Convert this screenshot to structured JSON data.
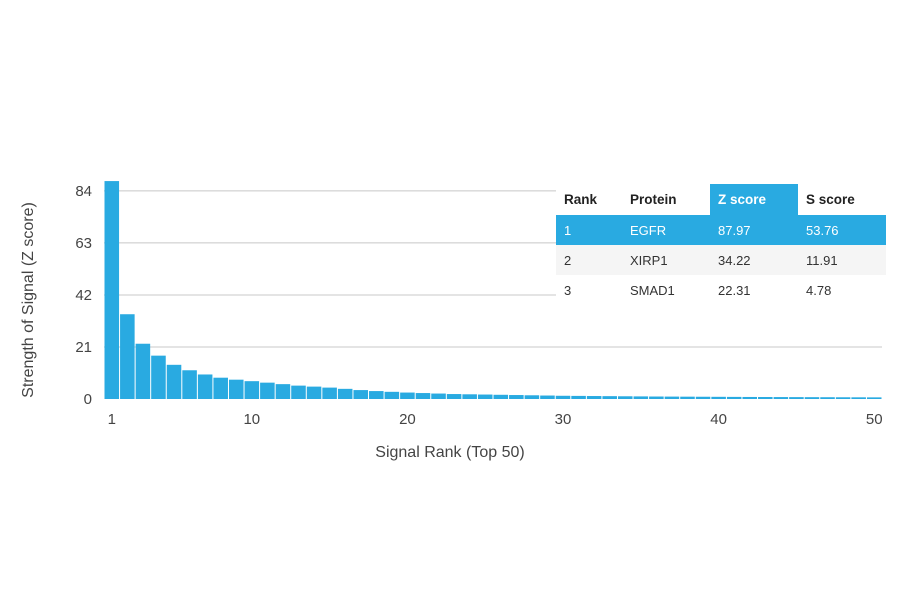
{
  "colors": {
    "bar": "#29aae1",
    "highlight": "#29aae1",
    "grid": "#c8c8c8"
  },
  "chart_data": {
    "type": "bar",
    "xlabel": "Signal Rank (Top 50)",
    "ylabel": "Strength of Signal (Z score)",
    "ylim": [
      0,
      88
    ],
    "yticks": [
      0,
      21,
      42,
      63,
      84
    ],
    "xticks": [
      1,
      10,
      20,
      30,
      40,
      50
    ],
    "grid": true,
    "x": [
      1,
      2,
      3,
      4,
      5,
      6,
      7,
      8,
      9,
      10,
      11,
      12,
      13,
      14,
      15,
      16,
      17,
      18,
      19,
      20,
      21,
      22,
      23,
      24,
      25,
      26,
      27,
      28,
      29,
      30,
      31,
      32,
      33,
      34,
      35,
      36,
      37,
      38,
      39,
      40,
      41,
      42,
      43,
      44,
      45,
      46,
      47,
      48,
      49,
      50
    ],
    "values": [
      87.97,
      34.22,
      22.31,
      17.5,
      13.8,
      11.6,
      9.9,
      8.6,
      7.8,
      7.2,
      6.6,
      6.0,
      5.4,
      5.0,
      4.6,
      4.1,
      3.6,
      3.2,
      2.9,
      2.6,
      2.4,
      2.2,
      2.0,
      1.9,
      1.8,
      1.7,
      1.6,
      1.5,
      1.4,
      1.3,
      1.25,
      1.2,
      1.15,
      1.1,
      1.05,
      1.0,
      0.97,
      0.94,
      0.91,
      0.88,
      0.85,
      0.82,
      0.8,
      0.78,
      0.76,
      0.74,
      0.72,
      0.7,
      0.68,
      0.66
    ]
  },
  "table": {
    "headers": [
      "Rank",
      "Protein",
      "Z score",
      "S score"
    ],
    "rows": [
      [
        "1",
        "EGFR",
        "87.97",
        "53.76"
      ],
      [
        "2",
        "XIRP1",
        "34.22",
        "11.91"
      ],
      [
        "3",
        "SMAD1",
        "22.31",
        "4.78"
      ]
    ]
  }
}
